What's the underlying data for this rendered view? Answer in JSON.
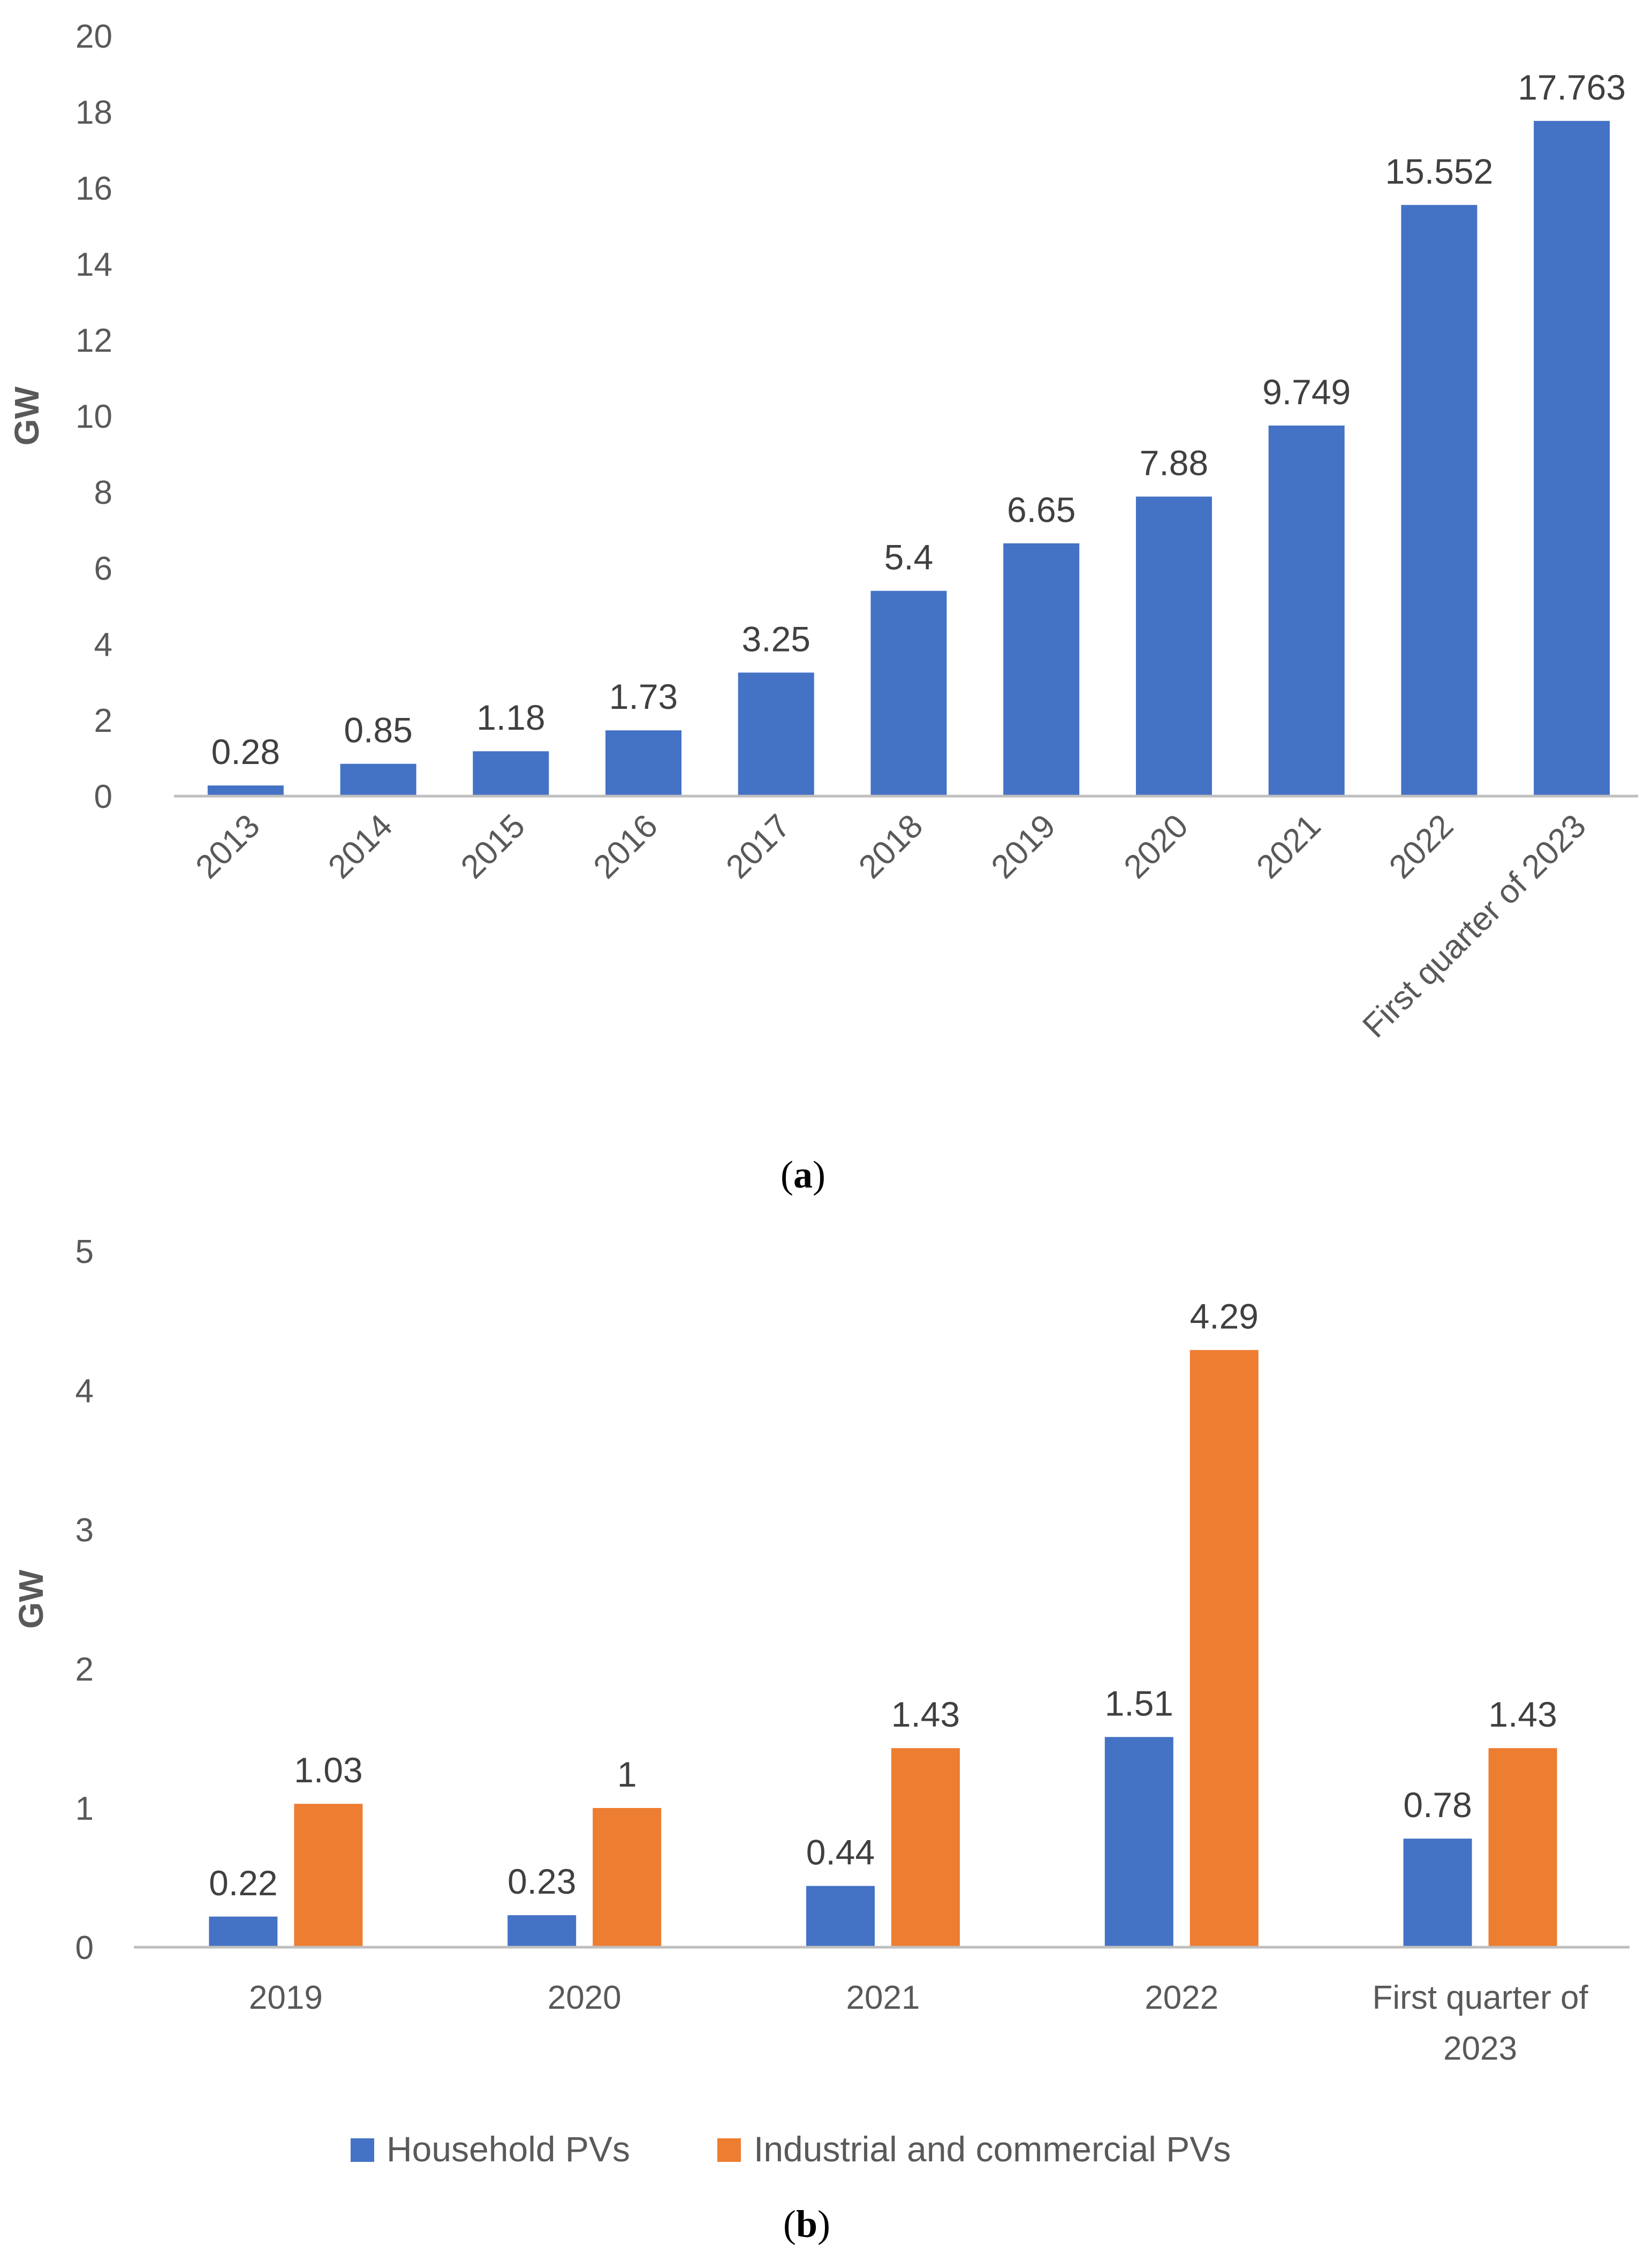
{
  "chart_data": [
    {
      "type": "bar",
      "panel": "a",
      "caption": {
        "open": "(",
        "letter": "a",
        "close": ")"
      },
      "title": "",
      "xlabel": "",
      "ylabel": "GW",
      "ylim": [
        0,
        20
      ],
      "yticks": [
        0,
        2,
        4,
        6,
        8,
        10,
        12,
        14,
        16,
        18,
        20
      ],
      "grid": false,
      "categories": [
        "2013",
        "2014",
        "2015",
        "2016",
        "2017",
        "2018",
        "2019",
        "2020",
        "2021",
        "2022",
        "First quarter of 2023"
      ],
      "values": [
        0.28,
        0.85,
        1.18,
        1.73,
        3.25,
        5.4,
        6.65,
        7.88,
        9.749,
        15.552,
        17.763
      ],
      "value_labels": [
        "0.28",
        "0.85",
        "1.18",
        "1.73",
        "3.25",
        "5.4",
        "6.65",
        "7.88",
        "9.749",
        "15.552",
        "17.763"
      ],
      "color": "#4472C4"
    },
    {
      "type": "bar",
      "panel": "b",
      "caption": {
        "open": "(",
        "letter": "b",
        "close": ")"
      },
      "title": "",
      "xlabel": "",
      "ylabel": "GW",
      "ylim": [
        0,
        5
      ],
      "yticks": [
        0,
        1,
        2,
        3,
        4,
        5
      ],
      "grid": false,
      "legend_position": "bottom",
      "categories": [
        "2019",
        "2020",
        "2021",
        "2022",
        "First quarter of 2023"
      ],
      "category_lines": [
        [
          "2019"
        ],
        [
          "2020"
        ],
        [
          "2021"
        ],
        [
          "2022"
        ],
        [
          "First quarter of",
          "2023"
        ]
      ],
      "series": [
        {
          "name": "Household PVs",
          "color": "#4472C4",
          "values": [
            0.22,
            0.23,
            0.44,
            1.51,
            0.78
          ],
          "value_labels": [
            "0.22",
            "0.23",
            "0.44",
            "1.51",
            "0.78"
          ]
        },
        {
          "name": "Industrial and commercial PVs",
          "color": "#ED7D31",
          "values": [
            1.03,
            1.0,
            1.43,
            4.29,
            1.43
          ],
          "value_labels": [
            "1.03",
            "1",
            "1.43",
            "4.29",
            "1.43"
          ]
        }
      ]
    }
  ]
}
